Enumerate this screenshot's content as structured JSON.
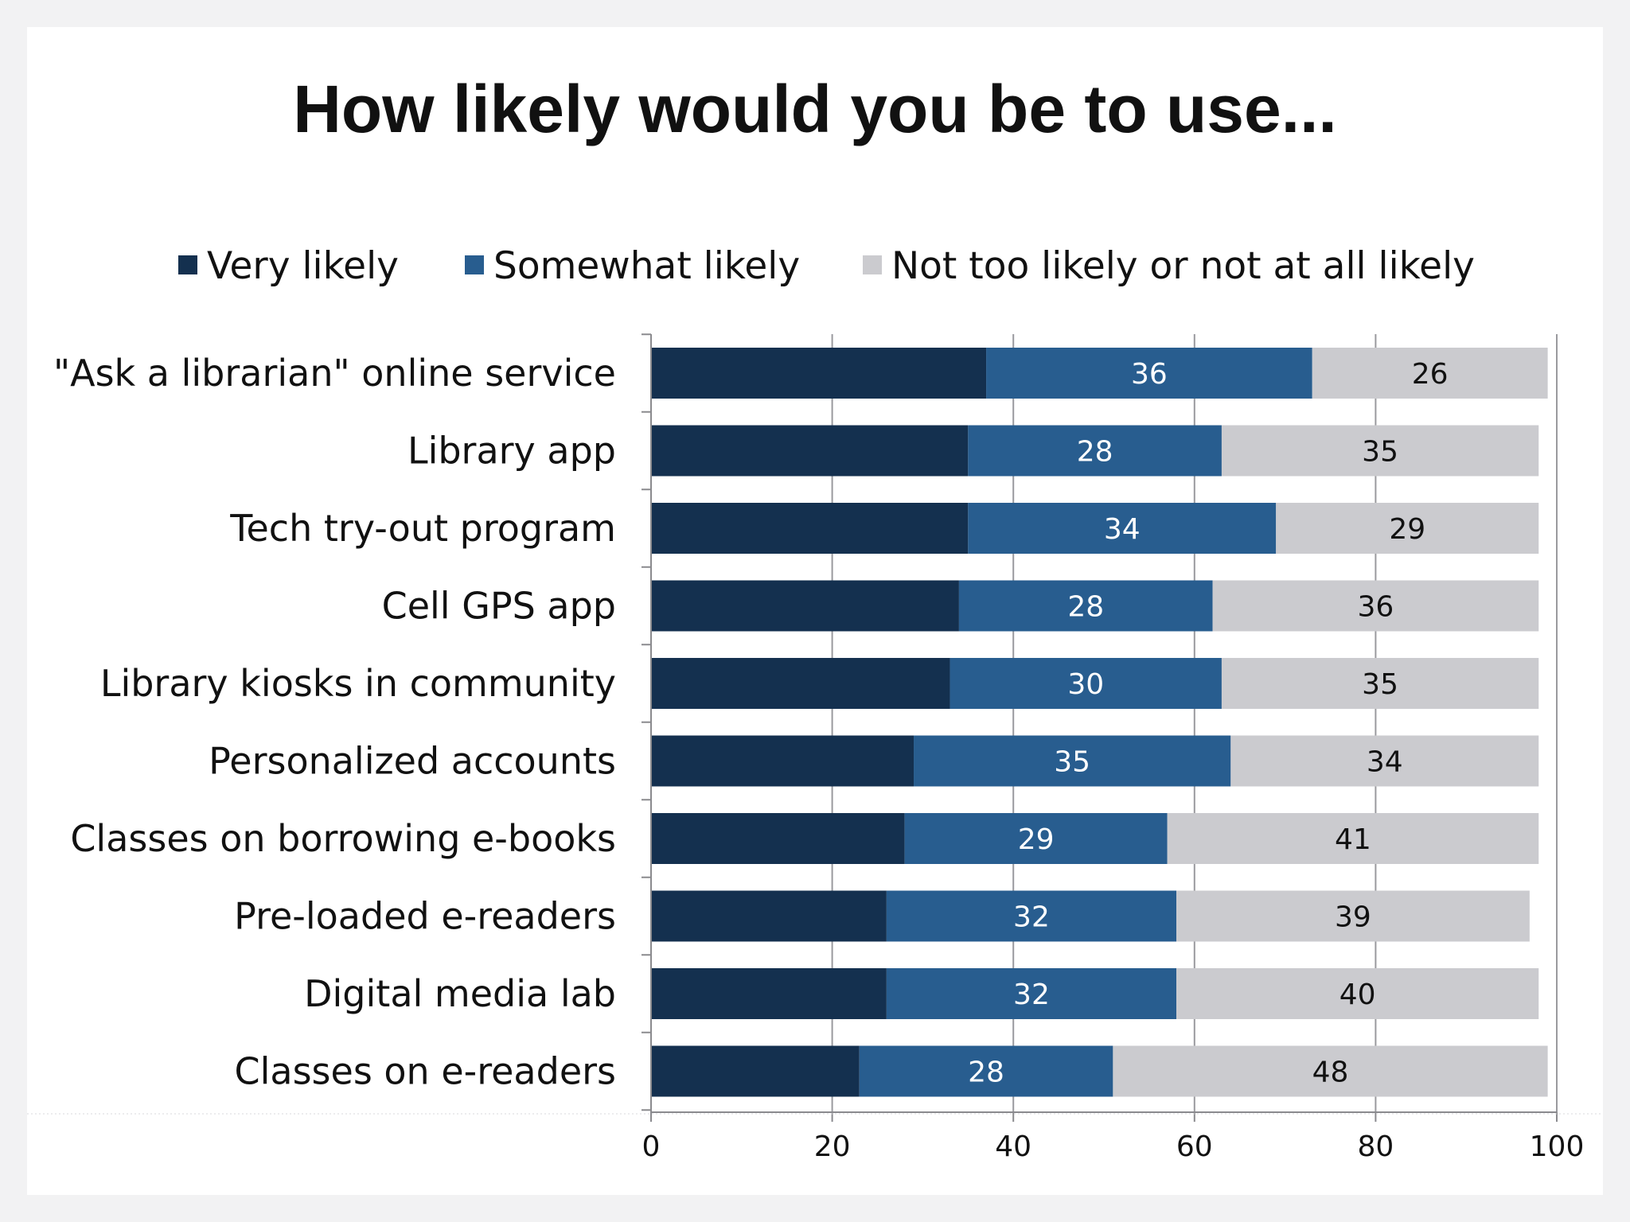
{
  "chart_data": {
    "type": "bar",
    "orientation": "horizontal",
    "stacked": true,
    "title": "How likely would you be to use...",
    "xlabel": "",
    "ylabel": "",
    "xlim": [
      0,
      100
    ],
    "xticks": [
      0,
      20,
      40,
      60,
      80,
      100
    ],
    "grid": true,
    "legend_position": "top",
    "categories": [
      "\"Ask a librarian\" online service",
      "Library app",
      "Tech try-out program",
      "Cell GPS app",
      "Library kiosks in community",
      "Personalized accounts",
      "Classes on borrowing e-books",
      "Pre-loaded e-readers",
      "Digital media lab",
      "Classes on e-readers"
    ],
    "series": [
      {
        "name": "Very likely",
        "color": "#14304f",
        "values": [
          37,
          35,
          35,
          34,
          33,
          29,
          28,
          26,
          26,
          23
        ],
        "show_labels": false
      },
      {
        "name": "Somewhat likely",
        "color": "#285d8f",
        "values": [
          36,
          28,
          34,
          28,
          30,
          35,
          29,
          32,
          32,
          28
        ],
        "show_labels": true
      },
      {
        "name": "Not too likely or not at all likely",
        "color": "#cbcbcf",
        "values": [
          26,
          35,
          29,
          36,
          35,
          34,
          41,
          39,
          40,
          48
        ],
        "show_labels": true
      }
    ]
  }
}
